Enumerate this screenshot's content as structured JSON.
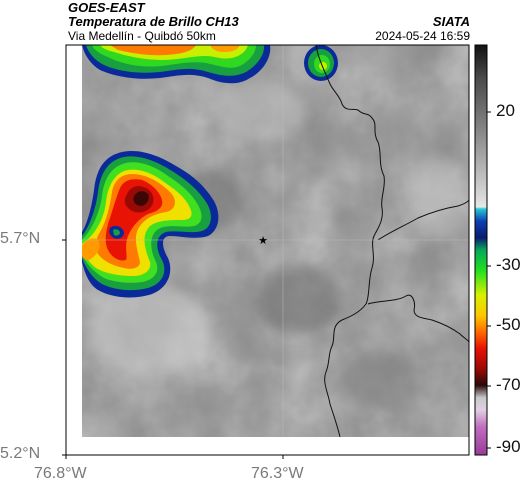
{
  "header": {
    "satellite": "GOES-EAST",
    "product": "Temperatura de Brillo CH13",
    "region": "Via Medellín - Quibdó 50km",
    "source": "SIATA",
    "timestamp": "2024-05-24 16:59"
  },
  "axes": {
    "lat_ticks": [
      {
        "value": 5.7,
        "label": "5.7°N"
      },
      {
        "value": 5.2,
        "label": "5.2°N"
      }
    ],
    "lon_ticks": [
      {
        "value": -76.8,
        "label": "76.8°W"
      },
      {
        "value": -76.3,
        "label": "76.3°W"
      }
    ],
    "lat_range": [
      5.2,
      6.2
    ],
    "lon_range": [
      -76.8,
      -76.3
    ]
  },
  "colorbar": {
    "ticks": [
      {
        "value": 20,
        "label": "20"
      },
      {
        "value": -30,
        "label": "-30"
      },
      {
        "value": -50,
        "label": "-50"
      },
      {
        "value": -70,
        "label": "-70"
      },
      {
        "value": -90,
        "label": "-90"
      }
    ],
    "range": [
      -93,
      35
    ]
  },
  "marker": {
    "name": "reference-point",
    "symbol": "★",
    "lat": 5.7,
    "lon": -76.35
  },
  "colors": {
    "background_gray": "#8a8a8a",
    "cold_cloud_red": "#d81e05",
    "axis_label": "#7a7a7a"
  }
}
